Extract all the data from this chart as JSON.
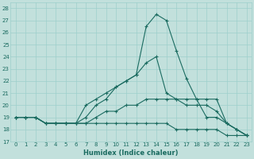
{
  "xlabel": "Humidex (Indice chaleur)",
  "xlim": [
    -0.5,
    23.5
  ],
  "ylim": [
    17,
    28.5
  ],
  "yticks": [
    17,
    18,
    19,
    20,
    21,
    22,
    23,
    24,
    25,
    26,
    27,
    28
  ],
  "xticks": [
    0,
    1,
    2,
    3,
    4,
    5,
    6,
    7,
    8,
    9,
    10,
    11,
    12,
    13,
    14,
    15,
    16,
    17,
    18,
    19,
    20,
    21,
    22,
    23
  ],
  "bg_color": "#c2e0dc",
  "grid_color": "#9dcfcc",
  "line_color": "#1a6b60",
  "lines": [
    {
      "x": [
        0,
        1,
        2,
        3,
        4,
        5,
        6,
        7,
        8,
        9,
        10,
        11,
        12,
        13,
        14,
        15,
        16,
        17,
        18,
        19,
        20,
        21,
        22,
        23
      ],
      "y": [
        19,
        19,
        19,
        18.5,
        18.5,
        18.5,
        18.5,
        19,
        20,
        20.5,
        21.5,
        22,
        22.5,
        26.5,
        27.5,
        27,
        24.5,
        22.2,
        20.5,
        20.5,
        20.5,
        18.5,
        18,
        17.5
      ]
    },
    {
      "x": [
        0,
        1,
        2,
        3,
        4,
        5,
        6,
        7,
        8,
        9,
        10,
        11,
        12,
        13,
        14,
        15,
        16,
        17,
        18,
        19,
        20,
        21,
        22,
        23
      ],
      "y": [
        19,
        19,
        19,
        18.5,
        18.5,
        18.5,
        18.5,
        20,
        20.5,
        21,
        21.5,
        22,
        22.5,
        23.5,
        24,
        21,
        20.5,
        20,
        20,
        20,
        19.5,
        18.5,
        18,
        17.5
      ]
    },
    {
      "x": [
        0,
        1,
        2,
        3,
        4,
        5,
        6,
        7,
        8,
        9,
        10,
        11,
        12,
        13,
        14,
        15,
        16,
        17,
        18,
        19,
        20,
        21,
        22,
        23
      ],
      "y": [
        19,
        19,
        19,
        18.5,
        18.5,
        18.5,
        18.5,
        18.5,
        19,
        19.5,
        19.5,
        20,
        20,
        20.5,
        20.5,
        20.5,
        20.5,
        20.5,
        20.5,
        19,
        19,
        18.5,
        18,
        17.5
      ]
    },
    {
      "x": [
        0,
        1,
        2,
        3,
        4,
        5,
        6,
        7,
        8,
        9,
        10,
        11,
        12,
        13,
        14,
        15,
        16,
        17,
        18,
        19,
        20,
        21,
        22,
        23
      ],
      "y": [
        19,
        19,
        19,
        18.5,
        18.5,
        18.5,
        18.5,
        18.5,
        18.5,
        18.5,
        18.5,
        18.5,
        18.5,
        18.5,
        18.5,
        18.5,
        18,
        18,
        18,
        18,
        18,
        17.5,
        17.5,
        17.5
      ]
    }
  ]
}
